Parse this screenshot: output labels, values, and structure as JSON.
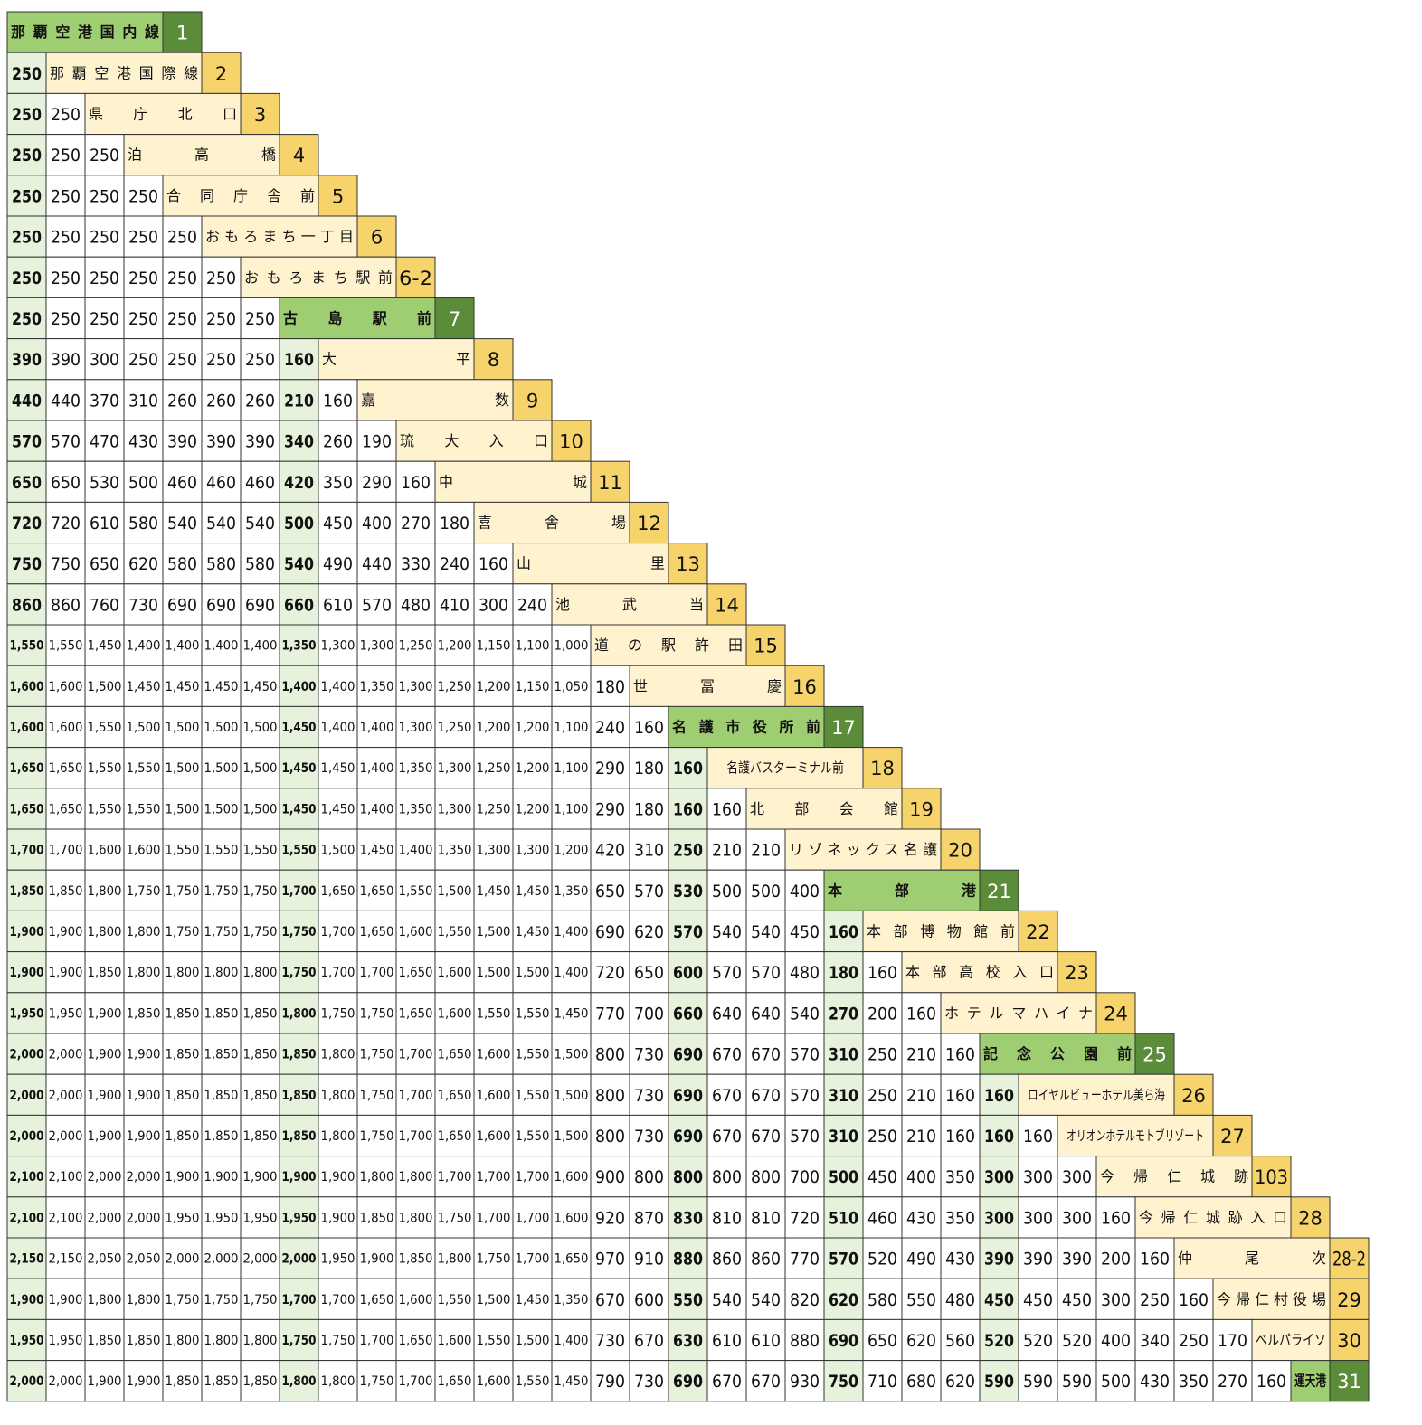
{
  "rows": [
    {
      "name": "那覇空港国内線",
      "code": "1",
      "major": true
    },
    {
      "name": "那覇空港国際線",
      "code": "2",
      "fares": [
        "250"
      ]
    },
    {
      "name": "県庁北口",
      "code": "3",
      "fares": [
        "250",
        "250"
      ]
    },
    {
      "name": "泊高橋",
      "code": "4",
      "fares": [
        "250",
        "250",
        "250"
      ]
    },
    {
      "name": "合同庁舎前",
      "code": "5",
      "fares": [
        "250",
        "250",
        "250",
        "250"
      ]
    },
    {
      "name": "おもろまち一丁目",
      "code": "6",
      "fares": [
        "250",
        "250",
        "250",
        "250",
        "250"
      ]
    },
    {
      "name": "おもろまち駅前",
      "code": "6-2",
      "fares": [
        "250",
        "250",
        "250",
        "250",
        "250",
        "250"
      ]
    },
    {
      "name": "古島駅前",
      "code": "7",
      "major": true,
      "fares": [
        "250",
        "250",
        "250",
        "250",
        "250",
        "250",
        "250"
      ]
    },
    {
      "name": "大平",
      "code": "8",
      "fares": [
        "390",
        "390",
        "300",
        "250",
        "250",
        "250",
        "250",
        "160"
      ]
    },
    {
      "name": "嘉数",
      "code": "9",
      "fares": [
        "440",
        "440",
        "370",
        "310",
        "260",
        "260",
        "260",
        "210",
        "160"
      ]
    },
    {
      "name": "琉大入口",
      "code": "10",
      "fares": [
        "570",
        "570",
        "470",
        "430",
        "390",
        "390",
        "390",
        "340",
        "260",
        "190"
      ]
    },
    {
      "name": "中城",
      "code": "11",
      "fares": [
        "650",
        "650",
        "530",
        "500",
        "460",
        "460",
        "460",
        "420",
        "350",
        "290",
        "160"
      ]
    },
    {
      "name": "喜舎場",
      "code": "12",
      "fares": [
        "720",
        "720",
        "610",
        "580",
        "540",
        "540",
        "540",
        "500",
        "450",
        "400",
        "270",
        "180"
      ]
    },
    {
      "name": "山里",
      "code": "13",
      "fares": [
        "750",
        "750",
        "650",
        "620",
        "580",
        "580",
        "580",
        "540",
        "490",
        "440",
        "330",
        "240",
        "160"
      ]
    },
    {
      "name": "池武当",
      "code": "14",
      "fares": [
        "860",
        "860",
        "760",
        "730",
        "690",
        "690",
        "690",
        "660",
        "610",
        "570",
        "480",
        "410",
        "300",
        "240"
      ]
    },
    {
      "name": "道の駅許田",
      "code": "15",
      "fares": [
        "1,550",
        "1,550",
        "1,450",
        "1,400",
        "1,400",
        "1,400",
        "1,400",
        "1,350",
        "1,300",
        "1,300",
        "1,250",
        "1,200",
        "1,150",
        "1,100",
        "1,000"
      ]
    },
    {
      "name": "世冨慶",
      "code": "16",
      "fares": [
        "1,600",
        "1,600",
        "1,500",
        "1,450",
        "1,450",
        "1,450",
        "1,450",
        "1,400",
        "1,400",
        "1,350",
        "1,300",
        "1,250",
        "1,200",
        "1,150",
        "1,050",
        "180"
      ]
    },
    {
      "name": "名護市役所前",
      "code": "17",
      "major": true,
      "fares": [
        "1,600",
        "1,600",
        "1,550",
        "1,500",
        "1,500",
        "1,500",
        "1,500",
        "1,450",
        "1,400",
        "1,400",
        "1,300",
        "1,250",
        "1,200",
        "1,200",
        "1,100",
        "240",
        "160"
      ]
    },
    {
      "name": "名護バスターミナル前",
      "code": "18",
      "fares": [
        "1,650",
        "1,650",
        "1,550",
        "1,550",
        "1,500",
        "1,500",
        "1,500",
        "1,450",
        "1,450",
        "1,400",
        "1,350",
        "1,300",
        "1,250",
        "1,200",
        "1,100",
        "290",
        "180",
        "160"
      ]
    },
    {
      "name": "北部会館",
      "code": "19",
      "fares": [
        "1,650",
        "1,650",
        "1,550",
        "1,550",
        "1,500",
        "1,500",
        "1,500",
        "1,450",
        "1,450",
        "1,400",
        "1,350",
        "1,300",
        "1,250",
        "1,200",
        "1,100",
        "290",
        "180",
        "160",
        "160"
      ]
    },
    {
      "name": "リゾネックス名護",
      "code": "20",
      "fares": [
        "1,700",
        "1,700",
        "1,600",
        "1,600",
        "1,550",
        "1,550",
        "1,550",
        "1,550",
        "1,500",
        "1,450",
        "1,400",
        "1,350",
        "1,300",
        "1,300",
        "1,200",
        "420",
        "310",
        "250",
        "210",
        "210"
      ]
    },
    {
      "name": "本部港",
      "code": "21",
      "major": true,
      "fares": [
        "1,850",
        "1,850",
        "1,800",
        "1,750",
        "1,750",
        "1,750",
        "1,750",
        "1,700",
        "1,650",
        "1,650",
        "1,550",
        "1,500",
        "1,450",
        "1,450",
        "1,350",
        "650",
        "570",
        "530",
        "500",
        "500",
        "400"
      ]
    },
    {
      "name": "本部博物館前",
      "code": "22",
      "fares": [
        "1,900",
        "1,900",
        "1,800",
        "1,800",
        "1,750",
        "1,750",
        "1,750",
        "1,750",
        "1,700",
        "1,650",
        "1,600",
        "1,550",
        "1,500",
        "1,450",
        "1,400",
        "690",
        "620",
        "570",
        "540",
        "540",
        "450",
        "160"
      ]
    },
    {
      "name": "本部高校入口",
      "code": "23",
      "fares": [
        "1,900",
        "1,900",
        "1,850",
        "1,800",
        "1,800",
        "1,800",
        "1,800",
        "1,750",
        "1,700",
        "1,700",
        "1,650",
        "1,600",
        "1,500",
        "1,500",
        "1,400",
        "720",
        "650",
        "600",
        "570",
        "570",
        "480",
        "180",
        "160"
      ]
    },
    {
      "name": "ホテルマハイナ",
      "code": "24",
      "fares": [
        "1,950",
        "1,950",
        "1,900",
        "1,850",
        "1,850",
        "1,850",
        "1,850",
        "1,800",
        "1,750",
        "1,750",
        "1,650",
        "1,600",
        "1,550",
        "1,550",
        "1,450",
        "770",
        "700",
        "660",
        "640",
        "640",
        "540",
        "270",
        "200",
        "160"
      ]
    },
    {
      "name": "記念公園前",
      "code": "25",
      "major": true,
      "fares": [
        "2,000",
        "2,000",
        "1,900",
        "1,900",
        "1,850",
        "1,850",
        "1,850",
        "1,850",
        "1,800",
        "1,750",
        "1,700",
        "1,650",
        "1,600",
        "1,550",
        "1,500",
        "800",
        "730",
        "690",
        "670",
        "670",
        "570",
        "310",
        "250",
        "210",
        "160"
      ]
    },
    {
      "name": "ロイヤルビューホテル美ら海",
      "code": "26",
      "fares": [
        "2,000",
        "2,000",
        "1,900",
        "1,900",
        "1,850",
        "1,850",
        "1,850",
        "1,850",
        "1,800",
        "1,750",
        "1,700",
        "1,650",
        "1,600",
        "1,550",
        "1,500",
        "800",
        "730",
        "690",
        "670",
        "670",
        "570",
        "310",
        "250",
        "210",
        "160",
        "160"
      ]
    },
    {
      "name": "オリオンホテルモトブリゾート",
      "code": "27",
      "fares": [
        "2,000",
        "2,000",
        "1,900",
        "1,900",
        "1,850",
        "1,850",
        "1,850",
        "1,850",
        "1,800",
        "1,750",
        "1,700",
        "1,650",
        "1,600",
        "1,550",
        "1,500",
        "800",
        "730",
        "690",
        "670",
        "670",
        "570",
        "310",
        "250",
        "210",
        "160",
        "160",
        "160"
      ]
    },
    {
      "name": "今帰仁城跡",
      "code": "103",
      "fares": [
        "2,100",
        "2,100",
        "2,000",
        "2,000",
        "1,900",
        "1,900",
        "1,900",
        "1,900",
        "1,900",
        "1,800",
        "1,800",
        "1,700",
        "1,700",
        "1,700",
        "1,600",
        "900",
        "800",
        "800",
        "800",
        "800",
        "700",
        "500",
        "450",
        "400",
        "350",
        "300",
        "300",
        "300"
      ]
    },
    {
      "name": "今帰仁城跡入口",
      "code": "28",
      "fares": [
        "2,100",
        "2,100",
        "2,000",
        "2,000",
        "1,950",
        "1,950",
        "1,950",
        "1,950",
        "1,900",
        "1,850",
        "1,800",
        "1,750",
        "1,700",
        "1,700",
        "1,600",
        "920",
        "870",
        "830",
        "810",
        "810",
        "720",
        "510",
        "460",
        "430",
        "350",
        "300",
        "300",
        "300",
        "160"
      ]
    },
    {
      "name": "仲尾次",
      "code": "28-2",
      "fares": [
        "2,150",
        "2,150",
        "2,050",
        "2,050",
        "2,000",
        "2,000",
        "2,000",
        "2,000",
        "1,950",
        "1,900",
        "1,850",
        "1,800",
        "1,750",
        "1,700",
        "1,650",
        "970",
        "910",
        "880",
        "860",
        "860",
        "770",
        "570",
        "520",
        "490",
        "430",
        "390",
        "390",
        "390",
        "200",
        "160"
      ]
    },
    {
      "name": "今帰仁村役場",
      "code": "29",
      "fares": [
        "1,900",
        "1,900",
        "1,800",
        "1,800",
        "1,750",
        "1,750",
        "1,750",
        "1,700",
        "1,700",
        "1,650",
        "1,600",
        "1,550",
        "1,500",
        "1,450",
        "1,350",
        "670",
        "600",
        "550",
        "540",
        "540",
        "820",
        "620",
        "580",
        "550",
        "480",
        "450",
        "450",
        "450",
        "300",
        "250",
        "160"
      ]
    },
    {
      "name": "ベルパライソ",
      "code": "30",
      "fares": [
        "1,950",
        "1,950",
        "1,850",
        "1,850",
        "1,800",
        "1,800",
        "1,800",
        "1,750",
        "1,750",
        "1,700",
        "1,650",
        "1,600",
        "1,550",
        "1,500",
        "1,400",
        "730",
        "670",
        "630",
        "610",
        "610",
        "880",
        "690",
        "650",
        "620",
        "560",
        "520",
        "520",
        "520",
        "400",
        "340",
        "250",
        "170"
      ]
    },
    {
      "name": "運天港",
      "code": "31",
      "major": true,
      "fares": [
        "2,000",
        "2,000",
        "1,900",
        "1,900",
        "1,850",
        "1,850",
        "1,850",
        "1,800",
        "1,800",
        "1,750",
        "1,700",
        "1,650",
        "1,600",
        "1,550",
        "1,450",
        "790",
        "730",
        "690",
        "670",
        "670",
        "930",
        "750",
        "710",
        "680",
        "620",
        "590",
        "590",
        "590",
        "500",
        "430",
        "350",
        "270",
        "160"
      ]
    }
  ]
}
